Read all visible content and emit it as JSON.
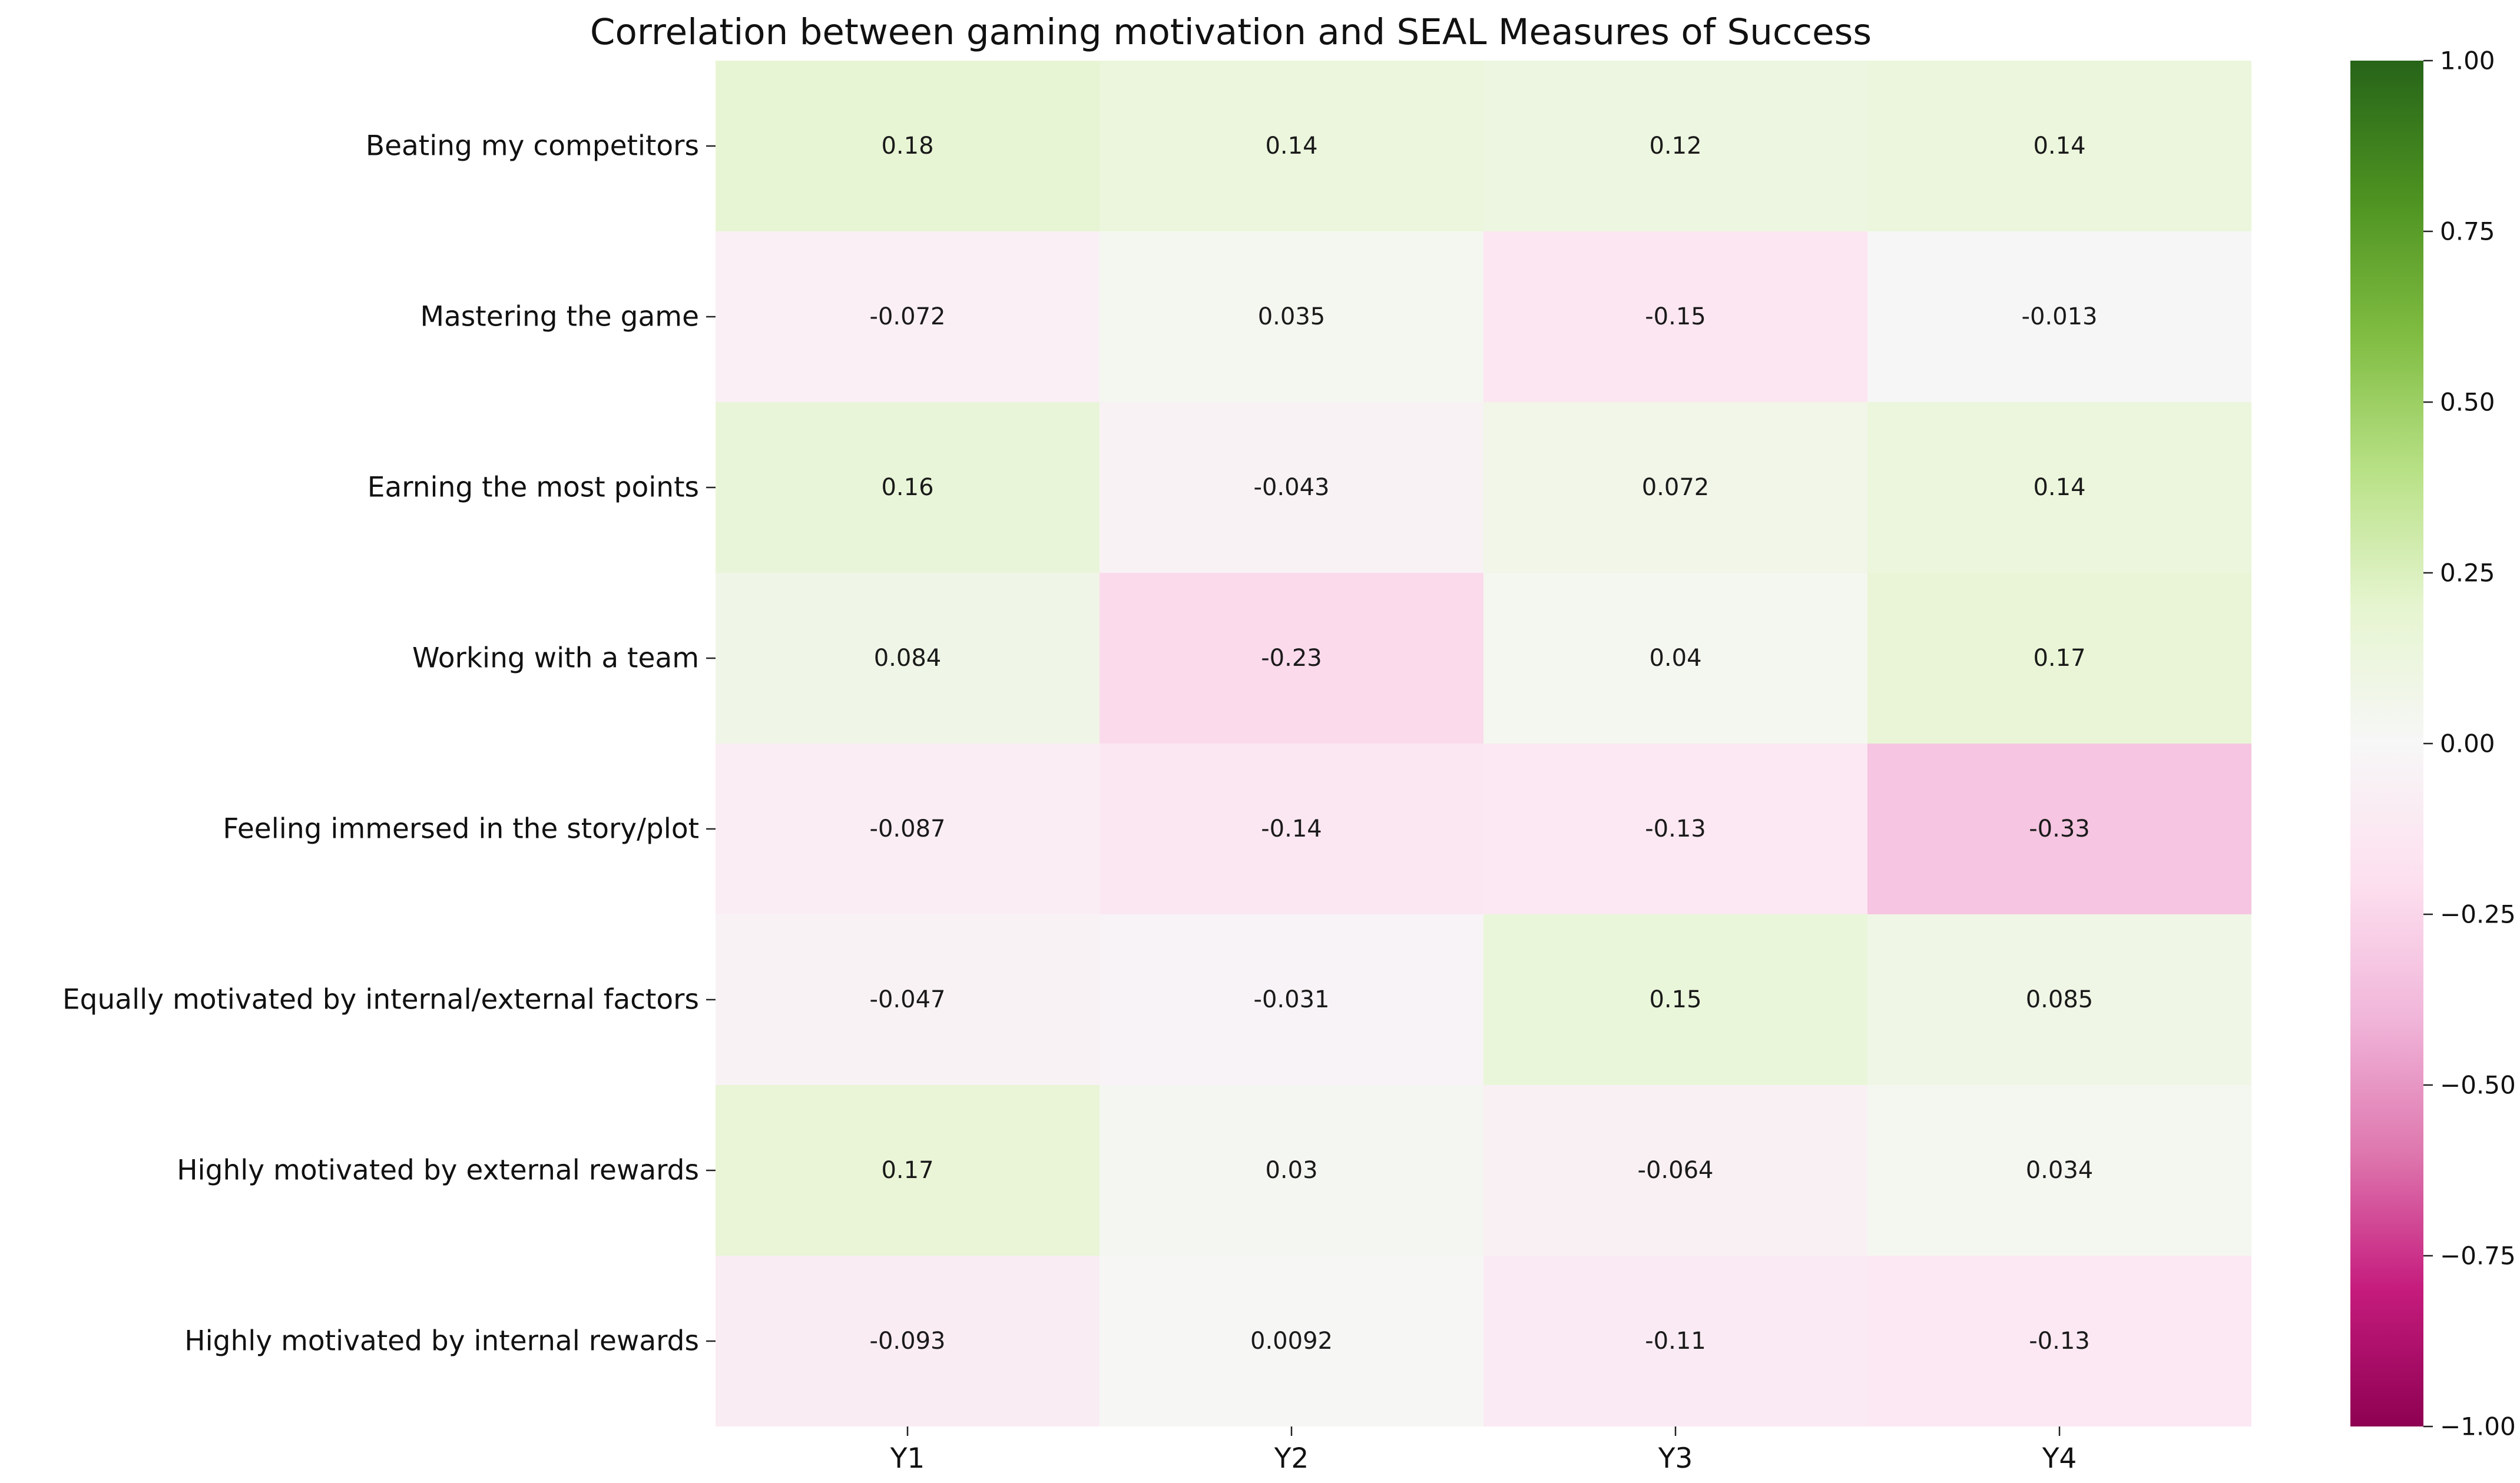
{
  "chart_data": {
    "type": "heatmap",
    "title": "Correlation between gaming motivation and SEAL Measures of Success",
    "columns": [
      "Y1",
      "Y2",
      "Y3",
      "Y4"
    ],
    "rows": [
      "Beating my competitors",
      "Mastering the game",
      "Earning the most points",
      "Working with a team",
      "Feeling immersed in the story/plot",
      "Equally motivated by internal/external factors",
      "Highly motivated by external rewards",
      "Highly motivated by internal rewards"
    ],
    "values": [
      [
        0.18,
        0.14,
        0.12,
        0.14
      ],
      [
        -0.072,
        0.035,
        -0.15,
        -0.013
      ],
      [
        0.16,
        -0.043,
        0.072,
        0.14
      ],
      [
        0.084,
        -0.23,
        0.04,
        0.17
      ],
      [
        -0.087,
        -0.14,
        -0.13,
        -0.33
      ],
      [
        -0.047,
        -0.031,
        0.15,
        0.085
      ],
      [
        0.17,
        0.03,
        -0.064,
        0.034
      ],
      [
        -0.093,
        0.0092,
        -0.11,
        -0.13
      ]
    ],
    "labels": [
      [
        "0.18",
        "0.14",
        "0.12",
        "0.14"
      ],
      [
        "-0.072",
        "0.035",
        "-0.15",
        "-0.013"
      ],
      [
        "0.16",
        "-0.043",
        "0.072",
        "0.14"
      ],
      [
        "0.084",
        "-0.23",
        "0.04",
        "0.17"
      ],
      [
        "-0.087",
        "-0.14",
        "-0.13",
        "-0.33"
      ],
      [
        "-0.047",
        "-0.031",
        "0.15",
        "0.085"
      ],
      [
        "0.17",
        "0.03",
        "-0.064",
        "0.034"
      ],
      [
        "-0.093",
        "0.0092",
        "-0.11",
        "-0.13"
      ]
    ],
    "vmin": -1,
    "vmax": 1,
    "colormap": "PiYG",
    "colorbar": {
      "ticks": [
        1.0,
        0.75,
        0.5,
        0.25,
        0.0,
        -0.25,
        -0.5,
        -0.75,
        -1.0
      ],
      "tick_labels": [
        "1.00",
        "0.75",
        "0.50",
        "0.25",
        "0.00",
        "−0.25",
        "−0.50",
        "−0.75",
        "−1.00"
      ]
    }
  }
}
